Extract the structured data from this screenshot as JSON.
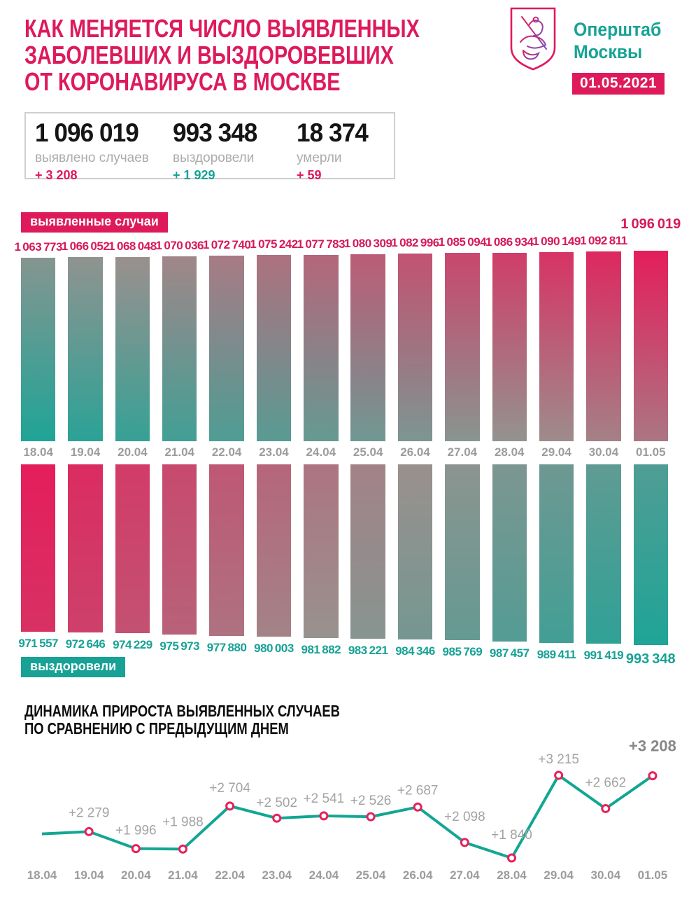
{
  "header": {
    "title_lines": [
      "КАК МЕНЯЕТСЯ ЧИСЛО ВЫЯВЛЕННЫХ",
      "ЗАБОЛЕВШИХ И ВЫЗДОРОВЕВШИХ",
      "ОТ КОРОНАВИРУСА В МОСКВЕ"
    ],
    "org_name_lines": [
      "Оперштаб",
      "Москвы"
    ],
    "date_badge": "01.05.2021",
    "logo": "moscow-coat-of-arms"
  },
  "stats": [
    {
      "value": "1 096 019",
      "label": "выявлено случаев",
      "delta": "+ 3 208",
      "delta_color": "#DE1A5B"
    },
    {
      "value": "993 348",
      "label": "выздоровели",
      "delta": "+ 1 929",
      "delta_color": "#17A295"
    },
    {
      "value": "18 374",
      "label": "умерли",
      "delta": "+ 59",
      "delta_color": "#DE1A5B"
    }
  ],
  "colors": {
    "accent_pink": "#DE1A5B",
    "accent_teal": "#17A295",
    "bar_teal": "#1FA497",
    "bar_gray": "#99928F",
    "bar_pink": "#E41E5B",
    "value_label_pink": "#D6195B",
    "value_label_teal": "#17A295",
    "date_gray": "#9C9C9C",
    "line_teal": "#12A693",
    "marker_ring_pink": "#E6215C",
    "line_label_gray": "#A3A3A3",
    "line_label_dark": "#878787"
  },
  "chart_data": [
    {
      "type": "bar",
      "name": "cumulative-detected-and-recovered",
      "categories": [
        "18.04",
        "19.04",
        "20.04",
        "21.04",
        "22.04",
        "23.04",
        "24.04",
        "25.04",
        "26.04",
        "27.04",
        "28.04",
        "29.04",
        "30.04",
        "01.05"
      ],
      "series": [
        {
          "name": "выявленные случаи",
          "values": [
            1063773,
            1066052,
            1068048,
            1070036,
            1072740,
            1075242,
            1077783,
            1080309,
            1082996,
            1085094,
            1086934,
            1090149,
            1092811,
            1096019
          ]
        },
        {
          "name": "выздоровели",
          "values": [
            971557,
            972646,
            974229,
            975973,
            977880,
            980003,
            981882,
            983221,
            984346,
            985769,
            987457,
            989411,
            991419,
            993348
          ]
        }
      ],
      "layout": {
        "value_labels": "at bar ends",
        "top_bars_grow_up": true,
        "bottom_bars_hang_down": true,
        "gradient": "teal bottom-left to pink top-right (mirrored on bottom chart)"
      }
    },
    {
      "type": "line",
      "name": "daily-increase-of-detected-cases",
      "title_lines": [
        "ДИНАМИКА ПРИРОСТА ВЫЯВЛЕННЫХ СЛУЧАЕВ",
        "ПО СРАВНЕНИЮ С ПРЕДЫДУЩИМ ДНЕМ"
      ],
      "x": [
        "18.04",
        "19.04",
        "20.04",
        "21.04",
        "22.04",
        "23.04",
        "24.04",
        "25.04",
        "26.04",
        "27.04",
        "28.04",
        "29.04",
        "30.04",
        "01.05"
      ],
      "values": [
        2240,
        2279,
        1996,
        1988,
        2704,
        2502,
        2541,
        2526,
        2687,
        2098,
        1840,
        3215,
        2662,
        3208
      ],
      "point_labels": [
        null,
        "+2 279",
        "+1 996",
        "+1 988",
        "+2 704",
        "+2 502",
        "+2 541",
        "+2 526",
        "+2 687",
        "+2 098",
        "+1 840",
        "+3 215",
        "+2 662",
        "+3 208"
      ],
      "first_value_estimated_from_pixels": true,
      "ylim": [
        1800,
        3300
      ],
      "legend": "none",
      "grid": false
    }
  ]
}
